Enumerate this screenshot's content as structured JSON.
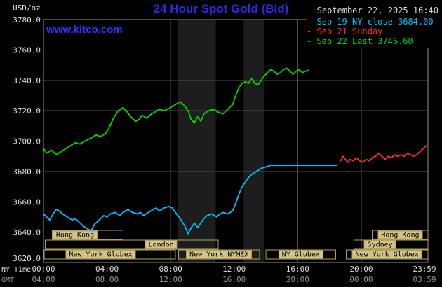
{
  "header": {
    "unit": "USD/oz",
    "title": "24 Hour Spot Gold (Bid)",
    "datetime": "September 22, 2025 16:40",
    "site": "www.kitco.com"
  },
  "legend": {
    "items": [
      {
        "text": "- Sep 19 NY close 3684.00",
        "color": "#00bfff"
      },
      {
        "text": "- Sep 21 Sunday",
        "color": "#ff2a2a"
      },
      {
        "text": "- Sep 22 Last 3746.60",
        "color": "#00d800"
      }
    ]
  },
  "axes": {
    "ny_label": "NY Time",
    "gmt_label": "GMT"
  },
  "chart_data": {
    "type": "line",
    "title": "24 Hour Spot Gold (Bid)",
    "ylabel": "USD/oz",
    "ylim": [
      3620,
      3780
    ],
    "yticks": [
      3780,
      3760,
      3740,
      3720,
      3700,
      3680,
      3660,
      3640,
      3620
    ],
    "xlim": [
      0,
      24.2
    ],
    "xticks": [
      {
        "h": 0,
        "ny": "00:00",
        "gmt": "04:00",
        "grid": false
      },
      {
        "h": 4,
        "ny": "04:00",
        "gmt": "08:00",
        "grid": true
      },
      {
        "h": 8,
        "ny": "08:00",
        "gmt": "12:00",
        "grid": true
      },
      {
        "h": 12,
        "ny": "12:00",
        "gmt": "16:00",
        "grid": true
      },
      {
        "h": 16,
        "ny": "16:00",
        "gmt": "20:00",
        "grid": true
      },
      {
        "h": 20,
        "ny": "20:00",
        "gmt": "00:00",
        "grid": true
      },
      {
        "h": 23.983,
        "ny": "23:59",
        "gmt": "03:59",
        "grid": false
      }
    ],
    "bands": [
      {
        "x0": 8.45,
        "x1": 10.85
      },
      {
        "x0": 12.6,
        "x1": 13.9
      }
    ],
    "sessions": [
      [
        {
          "label": "Hong Kong",
          "start": 0.55,
          "end": 5.0,
          "label_at": 0.3
        },
        {
          "label": "Hong Kong",
          "start": 20.7,
          "end": 24.2,
          "label_at": 0.5
        }
      ],
      [
        {
          "label": "London",
          "start": 0.1,
          "end": 11.0,
          "label_at": 0.67
        },
        {
          "label": "Sydney",
          "start": 19.55,
          "end": 24.2,
          "label_at": 0.35
        }
      ],
      [
        {
          "label": "New York Globex",
          "start": 0.05,
          "end": 8.3,
          "label_at": 0.43
        },
        {
          "label": "New York NYMEX",
          "start": 8.5,
          "end": 13.6,
          "label_at": 0.5
        },
        {
          "label": "NY Globex",
          "start": 14.0,
          "end": 18.4,
          "label_at": 0.5
        },
        {
          "label": "New York Globex",
          "start": 19.05,
          "end": 24.2,
          "label_at": 0.5
        }
      ]
    ],
    "colors": {
      "background": "#000000",
      "grid": "#4f4f4f",
      "border": "#8f8f8f",
      "band": "#1d1d1d",
      "tick_text": "#e0e0e0",
      "gmt_text": "#969696",
      "session_border": "#b3a15a",
      "session_fill": "#d2c488",
      "title": "#2b2be0",
      "link": "#3333ff"
    },
    "series": [
      {
        "id": "sep19-ny-close",
        "name": "Sep 19 NY close 3684.00",
        "color": "#00bfff",
        "points": [
          [
            0,
            3652
          ],
          [
            0.2,
            3650
          ],
          [
            0.4,
            3648
          ],
          [
            0.6,
            3652
          ],
          [
            0.8,
            3655
          ],
          [
            1,
            3654
          ],
          [
            1.2,
            3652
          ],
          [
            1.5,
            3650
          ],
          [
            1.8,
            3648
          ],
          [
            2,
            3649
          ],
          [
            2.2,
            3647
          ],
          [
            2.5,
            3644
          ],
          [
            2.8,
            3642
          ],
          [
            3,
            3641
          ],
          [
            3.2,
            3645
          ],
          [
            3.5,
            3648
          ],
          [
            3.8,
            3651
          ],
          [
            4,
            3650
          ],
          [
            4.2,
            3652
          ],
          [
            4.5,
            3653
          ],
          [
            4.8,
            3651
          ],
          [
            5,
            3653
          ],
          [
            5.3,
            3655
          ],
          [
            5.6,
            3653
          ],
          [
            5.9,
            3652
          ],
          [
            6.1,
            3653
          ],
          [
            6.3,
            3651
          ],
          [
            6.6,
            3653
          ],
          [
            6.9,
            3655
          ],
          [
            7.1,
            3656
          ],
          [
            7.3,
            3654
          ],
          [
            7.6,
            3656
          ],
          [
            7.9,
            3657
          ],
          [
            8.1,
            3656
          ],
          [
            8.3,
            3653
          ],
          [
            8.6,
            3649
          ],
          [
            8.9,
            3644
          ],
          [
            9.1,
            3639
          ],
          [
            9.3,
            3643
          ],
          [
            9.5,
            3646
          ],
          [
            9.7,
            3643
          ],
          [
            9.9,
            3646
          ],
          [
            10.1,
            3649
          ],
          [
            10.3,
            3651
          ],
          [
            10.6,
            3652
          ],
          [
            10.9,
            3650
          ],
          [
            11.1,
            3652
          ],
          [
            11.3,
            3653
          ],
          [
            11.6,
            3652
          ],
          [
            11.9,
            3654
          ],
          [
            12.1,
            3659
          ],
          [
            12.3,
            3665
          ],
          [
            12.5,
            3670
          ],
          [
            12.7,
            3673
          ],
          [
            12.9,
            3676
          ],
          [
            13.1,
            3678
          ],
          [
            13.4,
            3680
          ],
          [
            13.7,
            3682
          ],
          [
            14,
            3683
          ],
          [
            14.3,
            3684
          ],
          [
            14.7,
            3684
          ],
          [
            15.1,
            3684
          ],
          [
            15.6,
            3684
          ],
          [
            16.1,
            3684
          ],
          [
            16.6,
            3684
          ],
          [
            17.1,
            3684
          ],
          [
            17.6,
            3684
          ],
          [
            18.1,
            3684
          ],
          [
            18.45,
            3684
          ]
        ]
      },
      {
        "id": "sep21-sunday",
        "name": "Sep 21 Sunday",
        "color": "#ff2a2a",
        "points": [
          [
            18.7,
            3687
          ],
          [
            18.85,
            3690
          ],
          [
            19,
            3688
          ],
          [
            19.15,
            3686
          ],
          [
            19.3,
            3688
          ],
          [
            19.5,
            3687
          ],
          [
            19.7,
            3689
          ],
          [
            19.9,
            3687
          ],
          [
            20.1,
            3686
          ],
          [
            20.3,
            3688
          ],
          [
            20.5,
            3687
          ],
          [
            20.7,
            3689
          ],
          [
            20.9,
            3690
          ],
          [
            21.1,
            3692
          ],
          [
            21.3,
            3690
          ],
          [
            21.5,
            3688
          ],
          [
            21.7,
            3690
          ],
          [
            21.9,
            3689
          ],
          [
            22.1,
            3691
          ],
          [
            22.3,
            3690
          ],
          [
            22.5,
            3691
          ],
          [
            22.7,
            3690
          ],
          [
            22.9,
            3692
          ],
          [
            23.1,
            3691
          ],
          [
            23.3,
            3690
          ],
          [
            23.5,
            3691
          ],
          [
            23.7,
            3693
          ],
          [
            23.9,
            3695
          ],
          [
            24.1,
            3697
          ]
        ]
      },
      {
        "id": "sep22-last",
        "name": "Sep 22 Last 3746.60",
        "color": "#00d800",
        "points": [
          [
            0,
            3695
          ],
          [
            0.2,
            3692
          ],
          [
            0.5,
            3694
          ],
          [
            0.8,
            3691
          ],
          [
            1.1,
            3693
          ],
          [
            1.4,
            3695
          ],
          [
            1.7,
            3697
          ],
          [
            2,
            3699
          ],
          [
            2.3,
            3698
          ],
          [
            2.6,
            3700
          ],
          [
            3,
            3702
          ],
          [
            3.3,
            3704
          ],
          [
            3.6,
            3703
          ],
          [
            3.9,
            3705
          ],
          [
            4.1,
            3708
          ],
          [
            4.4,
            3715
          ],
          [
            4.7,
            3720
          ],
          [
            5,
            3722
          ],
          [
            5.2,
            3720
          ],
          [
            5.5,
            3716
          ],
          [
            5.8,
            3713
          ],
          [
            6,
            3714
          ],
          [
            6.2,
            3717
          ],
          [
            6.5,
            3715
          ],
          [
            6.8,
            3718
          ],
          [
            7,
            3719
          ],
          [
            7.3,
            3721
          ],
          [
            7.6,
            3720
          ],
          [
            8,
            3722
          ],
          [
            8.3,
            3724
          ],
          [
            8.6,
            3726
          ],
          [
            8.9,
            3723
          ],
          [
            9.1,
            3720
          ],
          [
            9.3,
            3714
          ],
          [
            9.5,
            3712
          ],
          [
            9.7,
            3716
          ],
          [
            9.9,
            3713
          ],
          [
            10.1,
            3718
          ],
          [
            10.4,
            3720
          ],
          [
            10.7,
            3721
          ],
          [
            11,
            3719
          ],
          [
            11.3,
            3718
          ],
          [
            11.6,
            3721
          ],
          [
            11.9,
            3724
          ],
          [
            12.1,
            3730
          ],
          [
            12.3,
            3735
          ],
          [
            12.5,
            3738
          ],
          [
            12.7,
            3739
          ],
          [
            12.9,
            3738
          ],
          [
            13.1,
            3741
          ],
          [
            13.3,
            3738
          ],
          [
            13.5,
            3737
          ],
          [
            13.7,
            3740
          ],
          [
            13.9,
            3743
          ],
          [
            14.1,
            3745
          ],
          [
            14.3,
            3747
          ],
          [
            14.5,
            3746
          ],
          [
            14.7,
            3744
          ],
          [
            14.9,
            3745
          ],
          [
            15.1,
            3747
          ],
          [
            15.3,
            3748
          ],
          [
            15.5,
            3746
          ],
          [
            15.7,
            3744
          ],
          [
            15.9,
            3746
          ],
          [
            16.1,
            3747
          ],
          [
            16.3,
            3745
          ],
          [
            16.5,
            3746
          ],
          [
            16.67,
            3746.6
          ]
        ]
      }
    ]
  }
}
